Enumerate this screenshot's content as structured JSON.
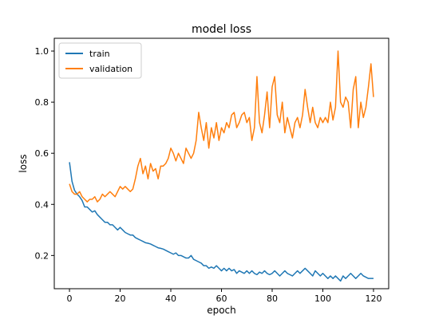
{
  "chart_data": {
    "type": "line",
    "title": "model loss",
    "xlabel": "epoch",
    "ylabel": "loss",
    "xlim": [
      -6,
      126
    ],
    "ylim": [
      0.07,
      1.05
    ],
    "xticks": [
      0,
      20,
      40,
      60,
      80,
      100,
      120
    ],
    "yticks": [
      0.2,
      0.4,
      0.6,
      0.8,
      1.0
    ],
    "xtick_labels": [
      "0",
      "20",
      "40",
      "60",
      "80",
      "100",
      "120"
    ],
    "ytick_labels": [
      "0.2",
      "0.4",
      "0.6",
      "0.8",
      "1.0"
    ],
    "grid": false,
    "legend_position": "top-left",
    "series": [
      {
        "name": "train",
        "color": "#1f77b4",
        "values": [
          0.565,
          0.49,
          0.455,
          0.44,
          0.43,
          0.415,
          0.39,
          0.39,
          0.38,
          0.37,
          0.375,
          0.36,
          0.35,
          0.34,
          0.33,
          0.33,
          0.32,
          0.32,
          0.31,
          0.3,
          0.31,
          0.3,
          0.29,
          0.285,
          0.28,
          0.28,
          0.27,
          0.265,
          0.26,
          0.255,
          0.25,
          0.248,
          0.245,
          0.24,
          0.235,
          0.23,
          0.228,
          0.225,
          0.22,
          0.215,
          0.21,
          0.205,
          0.21,
          0.2,
          0.2,
          0.195,
          0.19,
          0.19,
          0.2,
          0.185,
          0.18,
          0.175,
          0.17,
          0.16,
          0.16,
          0.15,
          0.155,
          0.15,
          0.16,
          0.15,
          0.14,
          0.15,
          0.14,
          0.15,
          0.14,
          0.145,
          0.13,
          0.14,
          0.135,
          0.13,
          0.14,
          0.13,
          0.14,
          0.13,
          0.125,
          0.135,
          0.13,
          0.14,
          0.13,
          0.125,
          0.13,
          0.14,
          0.13,
          0.12,
          0.13,
          0.14,
          0.13,
          0.125,
          0.12,
          0.13,
          0.14,
          0.13,
          0.14,
          0.15,
          0.14,
          0.13,
          0.12,
          0.14,
          0.13,
          0.12,
          0.13,
          0.12,
          0.11,
          0.12,
          0.11,
          0.12,
          0.11,
          0.1,
          0.12,
          0.11,
          0.12,
          0.13,
          0.12,
          0.11,
          0.12,
          0.13,
          0.12,
          0.115,
          0.11,
          0.11,
          0.11
        ]
      },
      {
        "name": "validation",
        "color": "#ff7f0e",
        "values": [
          0.48,
          0.45,
          0.44,
          0.44,
          0.45,
          0.43,
          0.42,
          0.41,
          0.42,
          0.42,
          0.43,
          0.41,
          0.42,
          0.44,
          0.43,
          0.44,
          0.45,
          0.44,
          0.43,
          0.45,
          0.47,
          0.46,
          0.47,
          0.46,
          0.45,
          0.46,
          0.5,
          0.55,
          0.58,
          0.52,
          0.55,
          0.5,
          0.56,
          0.53,
          0.54,
          0.5,
          0.55,
          0.55,
          0.56,
          0.58,
          0.62,
          0.6,
          0.57,
          0.6,
          0.58,
          0.56,
          0.62,
          0.6,
          0.58,
          0.6,
          0.65,
          0.76,
          0.7,
          0.65,
          0.72,
          0.62,
          0.7,
          0.66,
          0.72,
          0.65,
          0.7,
          0.68,
          0.72,
          0.7,
          0.75,
          0.76,
          0.7,
          0.72,
          0.75,
          0.76,
          0.72,
          0.74,
          0.65,
          0.7,
          0.9,
          0.72,
          0.68,
          0.75,
          0.84,
          0.7,
          0.86,
          0.9,
          0.75,
          0.72,
          0.8,
          0.68,
          0.74,
          0.7,
          0.66,
          0.72,
          0.74,
          0.7,
          0.75,
          0.85,
          0.78,
          0.72,
          0.78,
          0.72,
          0.7,
          0.74,
          0.72,
          0.74,
          0.72,
          0.8,
          0.73,
          0.78,
          1.0,
          0.8,
          0.78,
          0.82,
          0.8,
          0.7,
          0.85,
          0.9,
          0.7,
          0.8,
          0.74,
          0.78,
          0.86,
          0.95,
          0.82
        ]
      }
    ]
  }
}
